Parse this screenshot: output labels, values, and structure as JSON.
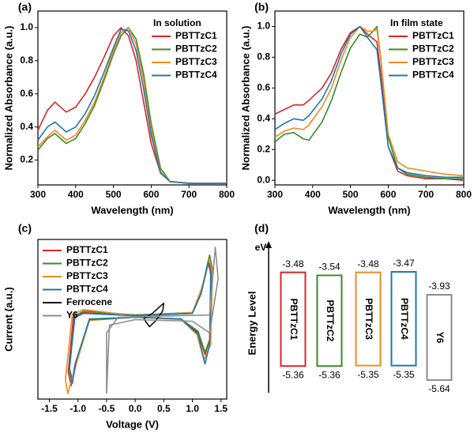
{
  "chart_data": [
    {
      "type": "line",
      "panel_label": "(a)",
      "annotation": "In solution",
      "legend": "upper right",
      "x_label": "Wavelength (nm)",
      "y_label": "Normalized Absorbance (a.u.)",
      "x": [
        300,
        325,
        345,
        375,
        400,
        425,
        450,
        475,
        500,
        520,
        540,
        560,
        580,
        600,
        625,
        650,
        700,
        750,
        800
      ],
      "xlim": [
        300,
        800
      ],
      "xticks": [
        300,
        400,
        500,
        600,
        700,
        800
      ],
      "ylim": [
        0.05,
        1.1
      ],
      "yticks": [
        0.2,
        0.4,
        0.6,
        0.8,
        {
          "value": 1,
          "label": "1.0"
        }
      ],
      "series": [
        {
          "name": "PBTTzC1",
          "color": "#d62728",
          "values": [
            0.38,
            0.5,
            0.55,
            0.49,
            0.52,
            0.6,
            0.7,
            0.82,
            0.95,
            1.0,
            0.95,
            0.8,
            0.55,
            0.3,
            0.12,
            0.07,
            0.06,
            0.06,
            0.06
          ]
        },
        {
          "name": "PBTTzC2",
          "color": "#3a8a2a",
          "values": [
            0.26,
            0.33,
            0.36,
            0.3,
            0.33,
            0.42,
            0.53,
            0.68,
            0.84,
            0.95,
            1.0,
            0.93,
            0.72,
            0.42,
            0.15,
            0.07,
            0.06,
            0.06,
            0.06
          ]
        },
        {
          "name": "PBTTzC3",
          "color": "#f28a1e",
          "values": [
            0.28,
            0.34,
            0.38,
            0.32,
            0.35,
            0.44,
            0.55,
            0.7,
            0.86,
            0.97,
            1.0,
            0.9,
            0.68,
            0.38,
            0.13,
            0.07,
            0.06,
            0.06,
            0.06
          ]
        },
        {
          "name": "PBTTzC4",
          "color": "#1f77b4",
          "values": [
            0.32,
            0.4,
            0.43,
            0.37,
            0.4,
            0.48,
            0.59,
            0.73,
            0.88,
            0.99,
            0.98,
            0.86,
            0.63,
            0.35,
            0.12,
            0.07,
            0.06,
            0.06,
            0.06
          ]
        }
      ]
    },
    {
      "type": "line",
      "panel_label": "(b)",
      "annotation": "In film state",
      "legend": "upper right",
      "x_label": "Wavelength (nm)",
      "y_label": "Normalized Absorbance (a.u.)",
      "x": [
        300,
        325,
        350,
        375,
        390,
        425,
        450,
        475,
        500,
        525,
        545,
        560,
        570,
        580,
        600,
        625,
        650,
        700,
        750,
        800
      ],
      "xlim": [
        300,
        800
      ],
      "xticks": [
        300,
        400,
        500,
        600,
        700,
        800
      ],
      "ylim": [
        -0.03,
        1.1
      ],
      "yticks": [
        {
          "value": 0,
          "label": "0.0"
        },
        0.2,
        0.4,
        0.6,
        0.8,
        {
          "value": 1,
          "label": "1.0"
        }
      ],
      "series": [
        {
          "name": "PBTTzC1",
          "color": "#d62728",
          "values": [
            0.43,
            0.46,
            0.49,
            0.49,
            0.52,
            0.6,
            0.7,
            0.85,
            0.96,
            1.0,
            0.95,
            0.92,
            0.9,
            0.7,
            0.22,
            0.06,
            0.03,
            0.01,
            0.01,
            0.0
          ]
        },
        {
          "name": "PBTTzC2",
          "color": "#3a8a2a",
          "values": [
            0.25,
            0.3,
            0.31,
            0.27,
            0.26,
            0.38,
            0.52,
            0.7,
            0.86,
            0.95,
            0.93,
            0.97,
            1.0,
            0.8,
            0.28,
            0.08,
            0.04,
            0.02,
            0.01,
            0.01
          ]
        },
        {
          "name": "PBTTzC3",
          "color": "#f28a1e",
          "values": [
            0.28,
            0.32,
            0.34,
            0.33,
            0.36,
            0.48,
            0.6,
            0.78,
            0.93,
            1.0,
            0.97,
            0.97,
            0.98,
            0.8,
            0.3,
            0.12,
            0.08,
            0.06,
            0.04,
            0.03
          ]
        },
        {
          "name": "PBTTzC4",
          "color": "#1f77b4",
          "values": [
            0.33,
            0.37,
            0.4,
            0.39,
            0.42,
            0.53,
            0.65,
            0.82,
            0.95,
            1.0,
            0.93,
            0.88,
            0.85,
            0.65,
            0.22,
            0.08,
            0.05,
            0.03,
            0.02,
            0.02
          ]
        }
      ]
    },
    {
      "type": "line",
      "panel_label": "(c)",
      "legend": "upper left",
      "x_label": "Voltage (V)",
      "y_label": "Current (a.u.)",
      "xlim": [
        -1.7,
        1.6
      ],
      "xticks": [
        -1.5,
        {
          "value": -1,
          "label": "-1.0"
        },
        -0.5,
        {
          "value": 0,
          "label": "0.0"
        },
        0.5,
        {
          "value": 1,
          "label": "1.0"
        },
        1.5
      ],
      "ylim": [
        -1.05,
        1.0
      ],
      "series": [
        {
          "name": "PBTTzC1",
          "color": "#d62728",
          "x": [
            0,
            1.0,
            1.15,
            1.28,
            1.33,
            1.3,
            1.22,
            1.1,
            0.8,
            0,
            -0.8,
            -1.05,
            -1.12,
            -1.17,
            -1.08,
            -0.9,
            0
          ],
          "values": [
            0.02,
            0.05,
            0.3,
            0.72,
            0.6,
            -0.3,
            -0.48,
            -0.2,
            -0.02,
            0.0,
            -0.03,
            -0.6,
            -0.88,
            -0.7,
            0.0,
            0.06,
            0.02
          ]
        },
        {
          "name": "PBTTzC2",
          "color": "#3a8a2a",
          "x": [
            0,
            1.0,
            1.15,
            1.3,
            1.35,
            1.32,
            1.22,
            1.1,
            0.8,
            0,
            -0.8,
            -1.0,
            -1.1,
            -1.15,
            -1.05,
            -0.9,
            0
          ],
          "values": [
            0.03,
            0.06,
            0.32,
            0.8,
            0.62,
            -0.25,
            -0.45,
            -0.18,
            -0.02,
            0.0,
            -0.02,
            -0.5,
            -0.8,
            -0.65,
            0.02,
            0.08,
            0.03
          ]
        },
        {
          "name": "PBTTzC3",
          "color": "#f28a1e",
          "x": [
            0,
            1.0,
            1.15,
            1.3,
            1.35,
            1.32,
            1.2,
            1.08,
            0.8,
            0,
            -0.8,
            -1.05,
            -1.18,
            -1.22,
            -1.1,
            -0.9,
            0
          ],
          "values": [
            0.02,
            0.06,
            0.35,
            0.75,
            0.55,
            -0.35,
            -0.55,
            -0.22,
            -0.03,
            0.0,
            -0.04,
            -0.65,
            -0.98,
            -0.8,
            0.04,
            0.1,
            0.02
          ]
        },
        {
          "name": "PBTTzC4",
          "color": "#1f77b4",
          "x": [
            0,
            1.0,
            1.15,
            1.28,
            1.32,
            1.3,
            1.22,
            1.1,
            0.8,
            0,
            -0.8,
            -1.03,
            -1.1,
            -1.15,
            -1.06,
            -0.9,
            0
          ],
          "values": [
            0.02,
            0.05,
            0.3,
            0.7,
            0.55,
            -0.35,
            -0.6,
            -0.22,
            -0.02,
            0.0,
            -0.03,
            -0.55,
            -0.85,
            -0.68,
            0.0,
            0.05,
            0.02
          ]
        },
        {
          "name": "Ferrocene",
          "color": "#111111",
          "x": [
            0.15,
            0.3,
            0.45,
            0.5,
            0.48,
            0.35,
            0.25,
            0.15
          ],
          "values": [
            -0.02,
            0.05,
            0.15,
            0.18,
            0.08,
            -0.05,
            -0.12,
            -0.02
          ]
        },
        {
          "name": "Y6",
          "color": "#8c8c8c",
          "x": [
            -0.5,
            -0.5,
            -0.3,
            1.3,
            1.4,
            1.45,
            1.3,
            1.0,
            0,
            -0.45,
            -0.5
          ],
          "values": [
            -0.98,
            -0.2,
            0.0,
            0.03,
            0.9,
            0.5,
            -0.2,
            -0.05,
            -0.03,
            -0.1,
            -0.98
          ]
        }
      ]
    },
    {
      "type": "energy-level",
      "panel_label": "(d)",
      "y_label": "Energy Level",
      "unit": "eV",
      "ylim": [
        -5.8,
        -3.2
      ],
      "categories": [
        "PBTTzC1",
        "PBTTzC2",
        "PBTTzC3",
        "PBTTzC4",
        "Y6"
      ],
      "colors": [
        "#d62728",
        "#3a8a2a",
        "#f28a1e",
        "#1f77b4",
        "#8c8c8c"
      ],
      "lumo": [
        -3.48,
        -3.54,
        -3.48,
        -3.47,
        -3.93
      ],
      "homo": [
        -5.36,
        -5.36,
        -5.35,
        -5.35,
        -5.64
      ]
    }
  ]
}
